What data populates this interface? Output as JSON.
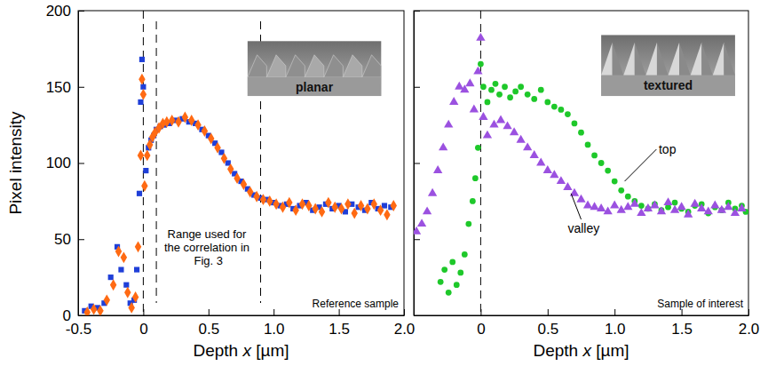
{
  "chart_data": [
    {
      "type": "scatter",
      "xlabel": "Depth x [µm]",
      "ylabel": "Pixel intensity",
      "note": "Reference sample",
      "inset_label": "planar",
      "xlim": [
        -0.5,
        2.0
      ],
      "xticks": [
        -0.5,
        0,
        0.5,
        {
          "value": 1,
          "label": "1.0"
        },
        1.5,
        {
          "value": 2,
          "label": "2.0"
        }
      ],
      "ylim": [
        0,
        200
      ],
      "yticks": [
        0,
        50,
        100,
        150,
        200
      ],
      "reference_lines": [
        0
      ],
      "annotation": {
        "text": "Range used for the correlation in Fig. 3",
        "range": [
          0.1,
          0.9
        ]
      },
      "series": [
        {
          "color": "#1f3fd8",
          "marker": "square",
          "x": [
            -0.45,
            -0.4,
            -0.35,
            -0.3,
            -0.25,
            -0.2,
            -0.17,
            -0.13,
            -0.1,
            -0.07,
            -0.05,
            -0.03,
            -0.02,
            -0.01,
            0,
            0.02,
            0.04,
            0.06,
            0.08,
            0.1,
            0.13,
            0.16,
            0.2,
            0.25,
            0.3,
            0.35,
            0.4,
            0.45,
            0.5,
            0.55,
            0.6,
            0.65,
            0.7,
            0.75,
            0.8,
            0.85,
            0.9,
            0.95,
            1.0,
            1.05,
            1.1,
            1.15,
            1.2,
            1.25,
            1.3,
            1.35,
            1.4,
            1.45,
            1.5,
            1.55,
            1.6,
            1.65,
            1.7,
            1.75,
            1.8,
            1.85,
            1.9
          ],
          "values": [
            3,
            6,
            5,
            8,
            25,
            45,
            30,
            20,
            8,
            10,
            30,
            80,
            140,
            168,
            150,
            95,
            110,
            115,
            118,
            122,
            124,
            125,
            126,
            128,
            129,
            127,
            126,
            122,
            118,
            113,
            107,
            100,
            93,
            88,
            83,
            79,
            77,
            76,
            74,
            72,
            73,
            70,
            72,
            74,
            69,
            71,
            73,
            70,
            72,
            68,
            73,
            71,
            69,
            74,
            70,
            72,
            71
          ]
        },
        {
          "color": "#ff6a13",
          "marker": "diamond",
          "x": [
            -0.43,
            -0.38,
            -0.33,
            -0.28,
            -0.23,
            -0.19,
            -0.15,
            -0.12,
            -0.09,
            -0.06,
            -0.04,
            -0.02,
            -0.01,
            0,
            0.01,
            0.03,
            0.05,
            0.07,
            0.09,
            0.12,
            0.15,
            0.18,
            0.22,
            0.27,
            0.32,
            0.37,
            0.42,
            0.47,
            0.52,
            0.57,
            0.62,
            0.67,
            0.72,
            0.77,
            0.82,
            0.87,
            0.92,
            0.97,
            1.02,
            1.07,
            1.12,
            1.17,
            1.22,
            1.27,
            1.32,
            1.37,
            1.42,
            1.47,
            1.52,
            1.57,
            1.62,
            1.67,
            1.72,
            1.77,
            1.82,
            1.87,
            1.92
          ],
          "values": [
            2,
            4,
            3,
            10,
            20,
            42,
            38,
            15,
            5,
            12,
            45,
            105,
            155,
            145,
            85,
            105,
            112,
            117,
            120,
            123,
            126,
            127,
            128,
            127,
            130,
            128,
            125,
            121,
            116,
            110,
            103,
            96,
            90,
            86,
            81,
            78,
            76,
            75,
            73,
            71,
            74,
            69,
            73,
            72,
            70,
            68,
            74,
            71,
            70,
            73,
            67,
            72,
            70,
            73,
            69,
            66,
            72
          ]
        }
      ]
    },
    {
      "type": "scatter",
      "xlabel": "Depth x [µm]",
      "note": "Sample of interest",
      "inset_label": "textured",
      "xlim": [
        -0.5,
        2.0
      ],
      "xticks": [
        0,
        0.5,
        {
          "value": 1,
          "label": "1.0"
        },
        1.5,
        {
          "value": 2,
          "label": "2.0"
        }
      ],
      "ylim": [
        0,
        200
      ],
      "yticks": [
        0,
        50,
        100,
        150,
        200
      ],
      "tick_labels": "x",
      "reference_lines": [
        0
      ],
      "series": [
        {
          "name": "top",
          "color": "#1ec82a",
          "marker": "circle",
          "x": [
            -0.3,
            -0.27,
            -0.24,
            -0.21,
            -0.18,
            -0.15,
            -0.12,
            -0.09,
            -0.06,
            -0.04,
            -0.02,
            0,
            0.02,
            0.05,
            0.08,
            0.11,
            0.14,
            0.18,
            0.22,
            0.26,
            0.3,
            0.35,
            0.4,
            0.45,
            0.5,
            0.55,
            0.6,
            0.65,
            0.7,
            0.75,
            0.8,
            0.85,
            0.9,
            0.95,
            1.0,
            1.05,
            1.1,
            1.15,
            1.2,
            1.25,
            1.3,
            1.35,
            1.4,
            1.45,
            1.5,
            1.55,
            1.6,
            1.65,
            1.7,
            1.75,
            1.8,
            1.85,
            1.9,
            1.95,
            1.98
          ],
          "values": [
            22,
            30,
            15,
            35,
            20,
            28,
            40,
            60,
            75,
            90,
            110,
            165,
            150,
            140,
            148,
            152,
            145,
            150,
            143,
            147,
            150,
            145,
            142,
            148,
            140,
            137,
            135,
            132,
            126,
            120,
            112,
            105,
            100,
            95,
            88,
            82,
            78,
            75,
            72,
            70,
            73,
            69,
            71,
            74,
            70,
            68,
            72,
            73,
            67,
            71,
            69,
            74,
            70,
            72,
            68
          ]
        },
        {
          "name": "valley",
          "color": "#9b51e0",
          "marker": "triangle",
          "x": [
            -0.48,
            -0.44,
            -0.4,
            -0.36,
            -0.32,
            -0.28,
            -0.24,
            -0.2,
            -0.16,
            -0.12,
            -0.08,
            -0.05,
            -0.02,
            0,
            0.02,
            0.05,
            0.1,
            0.15,
            0.2,
            0.25,
            0.3,
            0.35,
            0.4,
            0.45,
            0.5,
            0.55,
            0.6,
            0.65,
            0.7,
            0.75,
            0.8,
            0.85,
            0.9,
            0.95,
            1.0,
            1.05,
            1.1,
            1.15,
            1.2,
            1.25,
            1.3,
            1.35,
            1.4,
            1.45,
            1.5,
            1.55,
            1.6,
            1.65,
            1.7,
            1.75,
            1.8,
            1.85,
            1.9,
            1.95
          ],
          "values": [
            55,
            60,
            68,
            80,
            95,
            110,
            125,
            140,
            150,
            148,
            152,
            135,
            160,
            182,
            130,
            118,
            125,
            128,
            124,
            120,
            115,
            110,
            105,
            100,
            95,
            92,
            88,
            84,
            80,
            76,
            72,
            71,
            70,
            68,
            72,
            69,
            71,
            73,
            67,
            70,
            72,
            68,
            74,
            69,
            71,
            66,
            73,
            70,
            68,
            72,
            69,
            71,
            67,
            70
          ]
        }
      ]
    }
  ]
}
